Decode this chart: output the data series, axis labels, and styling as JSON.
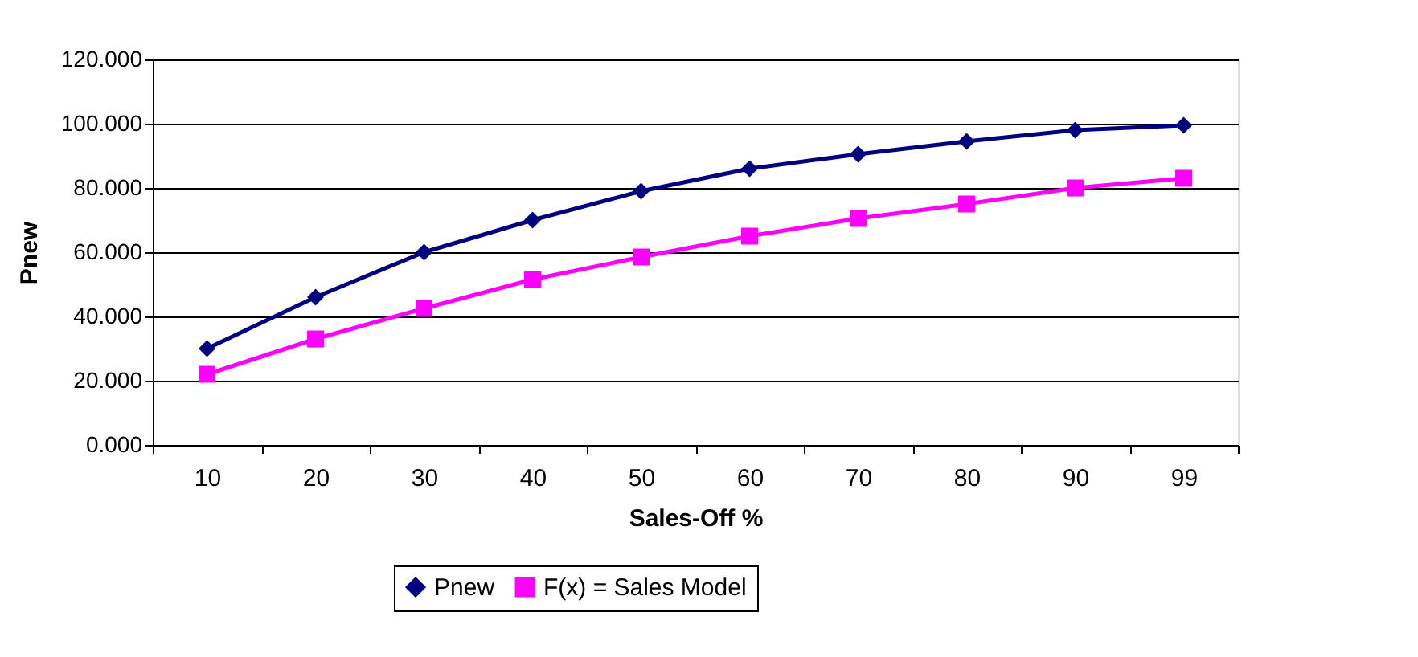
{
  "chart_data": {
    "type": "line",
    "xlabel": "Sales-Off %",
    "ylabel": "Pnew",
    "categories": [
      "10",
      "20",
      "30",
      "40",
      "50",
      "60",
      "70",
      "80",
      "90",
      "99"
    ],
    "series": [
      {
        "name": "Pnew",
        "color": "#000080",
        "marker": "diamond",
        "values": [
          30,
          46,
          60,
          70,
          79,
          86,
          90.5,
          94.5,
          98,
          99.5
        ]
      },
      {
        "name": "F(x) = Sales Model",
        "color": "#ff00ff",
        "marker": "square",
        "values": [
          22,
          33,
          42.5,
          51.5,
          58.5,
          65,
          70.5,
          75,
          80,
          83
        ]
      }
    ],
    "ylim": [
      0,
      120
    ],
    "yticks": [
      {
        "value": 0,
        "label": "0.000"
      },
      {
        "value": 20,
        "label": "20.000"
      },
      {
        "value": 40,
        "label": "40.000"
      },
      {
        "value": 60,
        "label": "60.000"
      },
      {
        "value": 80,
        "label": "80.000"
      },
      {
        "value": 100,
        "label": "100.000"
      },
      {
        "value": 120,
        "label": "120.000"
      }
    ],
    "grid": "y",
    "legend": "bottom",
    "line_style": "solid"
  }
}
